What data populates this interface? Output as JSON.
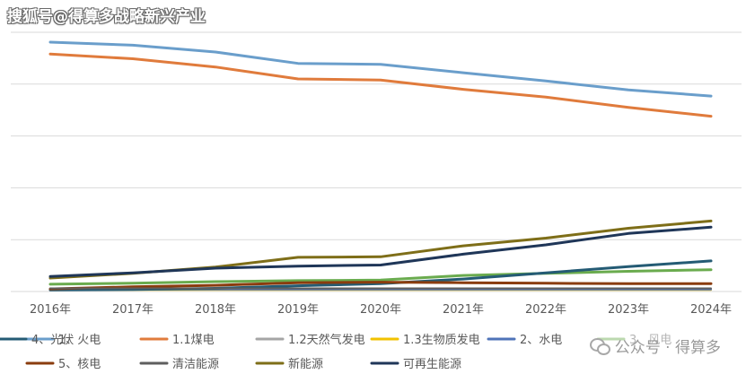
{
  "watermark_top": "搜狐号@得算多战略新兴产业",
  "watermark_bottom": "公众号 · 得算多",
  "colors": {
    "grid": "#d9d9d9",
    "axis_text": "#595959"
  },
  "chart_data": {
    "type": "line",
    "x": [
      "2016年",
      "2017年",
      "2018年",
      "2019年",
      "2020年",
      "2021年",
      "2022年",
      "2023年",
      "2024年"
    ],
    "ylim": [
      0,
      50
    ],
    "y_gridlines": [
      0,
      10,
      20,
      30,
      40,
      50
    ],
    "y_tick_labels_visible": false,
    "grid": true,
    "legend_position": "bottom",
    "series": [
      {
        "name": "1、火电",
        "color": "#6a9ecb",
        "width": 3,
        "values": [
          48.1,
          47.5,
          46.2,
          44.0,
          43.8,
          42.2,
          40.6,
          38.9,
          37.7
        ]
      },
      {
        "name": "1.1煤电",
        "color": "#e07b3c",
        "width": 3,
        "values": [
          45.8,
          44.9,
          43.3,
          41.0,
          40.8,
          39.0,
          37.5,
          35.5,
          33.8
        ]
      },
      {
        "name": "1.2天然气发电",
        "color": "#a5a5a5",
        "width": 2,
        "values": [
          0.5,
          0.5,
          0.5,
          0.5,
          0.5,
          0.5,
          0.5,
          0.5,
          0.5
        ]
      },
      {
        "name": "1.3生物质发电",
        "color": "#f2c200",
        "width": 2,
        "values": [
          0.3,
          0.3,
          0.3,
          0.3,
          0.3,
          0.3,
          0.3,
          0.3,
          0.3
        ]
      },
      {
        "name": "2、水电",
        "color": "#4f73b8",
        "width": 2,
        "values": [
          0.4,
          0.4,
          0.4,
          0.4,
          0.4,
          0.4,
          0.4,
          0.4,
          0.4
        ]
      },
      {
        "name": "3、风电",
        "color": "#6aab4e",
        "width": 3,
        "values": [
          1.4,
          1.6,
          1.9,
          2.1,
          2.2,
          3.1,
          3.5,
          3.9,
          4.2
        ]
      },
      {
        "name": "4、光伏",
        "color": "#245b74",
        "width": 3,
        "values": [
          0.3,
          0.4,
          0.6,
          1.1,
          1.5,
          2.4,
          3.6,
          4.8,
          5.9
        ]
      },
      {
        "name": "5、核电",
        "color": "#8a3c0e",
        "width": 3,
        "values": [
          0.5,
          0.9,
          1.2,
          1.7,
          1.8,
          1.7,
          1.6,
          1.5,
          1.5
        ]
      },
      {
        "name": "清洁能源",
        "color": "#5e5e5e",
        "width": 2,
        "values": [
          0.6,
          0.6,
          0.6,
          0.6,
          0.6,
          0.6,
          0.6,
          0.6,
          0.6
        ]
      },
      {
        "name": "新能源",
        "color": "#7e6e18",
        "width": 3,
        "values": [
          2.6,
          3.5,
          4.7,
          6.6,
          6.7,
          8.8,
          10.3,
          12.2,
          13.6
        ]
      },
      {
        "name": "可再生能源",
        "color": "#1f3658",
        "width": 3,
        "values": [
          2.9,
          3.6,
          4.5,
          4.9,
          5.1,
          7.2,
          9.0,
          11.2,
          12.4
        ]
      }
    ]
  }
}
